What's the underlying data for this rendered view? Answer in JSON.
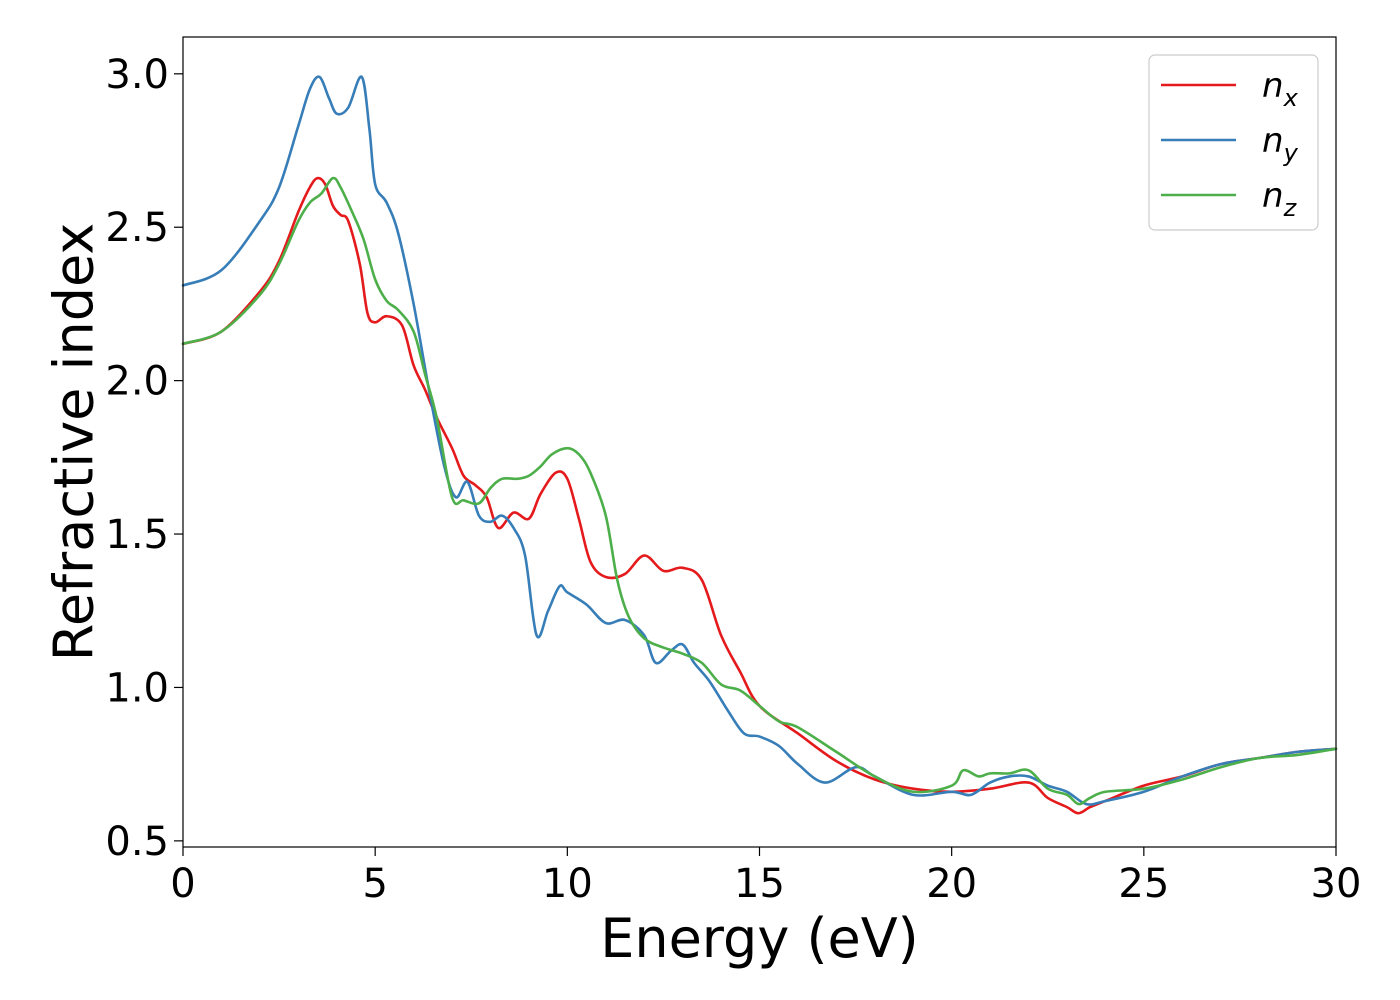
{
  "chart_data": {
    "type": "line",
    "xlabel": "Energy (eV)",
    "ylabel": "Refractive index",
    "xlim": [
      0,
      30
    ],
    "ylim": [
      0.48,
      3.12
    ],
    "xticks": [
      0,
      5,
      10,
      15,
      20,
      25,
      30
    ],
    "xtick_labels": [
      "0",
      "5",
      "10",
      "15",
      "20",
      "25",
      "30"
    ],
    "yticks": [
      0.5,
      1.0,
      1.5,
      2.0,
      2.5,
      3.0
    ],
    "ytick_labels": [
      "0.5",
      "1.0",
      "1.5",
      "2.0",
      "2.5",
      "3.0"
    ],
    "grid": false,
    "legend_position": "top-right",
    "series": [
      {
        "name": "n",
        "subscript": "x",
        "color": "#e41a1c",
        "x": [
          0,
          1,
          2,
          2.5,
          3,
          3.3,
          3.5,
          3.7,
          3.9,
          4.1,
          4.3,
          4.6,
          4.8,
          5.0,
          5.3,
          5.7,
          6.0,
          6.3,
          6.6,
          7.0,
          7.3,
          7.6,
          7.9,
          8.2,
          8.6,
          9.0,
          9.3,
          9.7,
          10.0,
          10.3,
          10.6,
          11.0,
          11.5,
          12.0,
          12.5,
          13.0,
          13.5,
          14.0,
          14.5,
          15.0,
          16.0,
          17.0,
          18.0,
          19.0,
          20.0,
          21.0,
          22.0,
          22.5,
          23.0,
          23.3,
          23.6,
          24.0,
          25.0,
          26.0,
          27.0,
          28.0,
          29.0,
          30.0
        ],
        "y": [
          2.12,
          2.16,
          2.29,
          2.39,
          2.55,
          2.63,
          2.66,
          2.64,
          2.57,
          2.54,
          2.52,
          2.38,
          2.22,
          2.19,
          2.21,
          2.18,
          2.05,
          1.97,
          1.88,
          1.78,
          1.69,
          1.66,
          1.62,
          1.52,
          1.57,
          1.55,
          1.63,
          1.7,
          1.68,
          1.55,
          1.41,
          1.36,
          1.37,
          1.43,
          1.38,
          1.39,
          1.35,
          1.17,
          1.05,
          0.94,
          0.85,
          0.76,
          0.7,
          0.67,
          0.66,
          0.67,
          0.69,
          0.64,
          0.61,
          0.59,
          0.61,
          0.63,
          0.68,
          0.71,
          0.75,
          0.77,
          0.79,
          0.8
        ]
      },
      {
        "name": "n",
        "subscript": "y",
        "color": "#377eb8",
        "x": [
          0,
          1,
          2,
          2.5,
          3,
          3.3,
          3.55,
          3.8,
          4.0,
          4.3,
          4.65,
          4.85,
          5.0,
          5.3,
          5.6,
          6.0,
          6.4,
          6.8,
          7.1,
          7.4,
          7.7,
          8.0,
          8.3,
          8.6,
          8.9,
          9.2,
          9.5,
          9.8,
          10.0,
          10.5,
          11.0,
          11.5,
          12.0,
          12.3,
          12.7,
          13.0,
          13.3,
          13.7,
          14.2,
          14.6,
          15.0,
          15.5,
          16.0,
          16.7,
          17.5,
          18.0,
          19.0,
          20.0,
          20.5,
          21.0,
          21.5,
          22.0,
          22.5,
          23.0,
          23.5,
          24.0,
          25.0,
          26.0,
          27.0,
          28.0,
          29.0,
          30.0
        ],
        "y": [
          2.31,
          2.36,
          2.52,
          2.63,
          2.83,
          2.95,
          2.99,
          2.92,
          2.87,
          2.89,
          2.99,
          2.82,
          2.64,
          2.58,
          2.48,
          2.25,
          1.97,
          1.72,
          1.62,
          1.67,
          1.56,
          1.54,
          1.56,
          1.52,
          1.43,
          1.17,
          1.25,
          1.33,
          1.31,
          1.27,
          1.21,
          1.22,
          1.17,
          1.08,
          1.12,
          1.14,
          1.08,
          1.02,
          0.92,
          0.85,
          0.84,
          0.81,
          0.75,
          0.69,
          0.74,
          0.71,
          0.65,
          0.66,
          0.65,
          0.69,
          0.71,
          0.71,
          0.68,
          0.66,
          0.62,
          0.63,
          0.66,
          0.71,
          0.75,
          0.77,
          0.79,
          0.8
        ]
      },
      {
        "name": "n",
        "subscript": "z",
        "color": "#4daf4a",
        "x": [
          0,
          1,
          2,
          2.5,
          3,
          3.3,
          3.6,
          3.9,
          4.1,
          4.4,
          4.7,
          5.0,
          5.3,
          5.6,
          6.0,
          6.3,
          6.6,
          7.0,
          7.3,
          7.7,
          8.0,
          8.3,
          8.7,
          9.0,
          9.3,
          9.6,
          10.0,
          10.3,
          10.6,
          11.0,
          11.3,
          11.6,
          12.0,
          12.5,
          13.0,
          13.5,
          14.0,
          14.5,
          15.0,
          15.5,
          16.0,
          17.0,
          18.0,
          19.0,
          20.0,
          20.3,
          20.7,
          21.0,
          21.5,
          22.0,
          22.5,
          23.0,
          23.3,
          23.6,
          24.0,
          25.0,
          26.0,
          27.0,
          28.0,
          29.0,
          30.0
        ],
        "y": [
          2.12,
          2.16,
          2.28,
          2.38,
          2.52,
          2.58,
          2.61,
          2.66,
          2.63,
          2.55,
          2.46,
          2.33,
          2.26,
          2.23,
          2.16,
          2.02,
          1.88,
          1.62,
          1.61,
          1.6,
          1.65,
          1.68,
          1.68,
          1.69,
          1.72,
          1.76,
          1.78,
          1.76,
          1.7,
          1.56,
          1.35,
          1.23,
          1.16,
          1.13,
          1.11,
          1.08,
          1.01,
          0.99,
          0.94,
          0.89,
          0.87,
          0.79,
          0.71,
          0.66,
          0.68,
          0.73,
          0.71,
          0.72,
          0.72,
          0.73,
          0.67,
          0.65,
          0.62,
          0.64,
          0.66,
          0.67,
          0.7,
          0.74,
          0.77,
          0.78,
          0.8
        ]
      }
    ]
  }
}
